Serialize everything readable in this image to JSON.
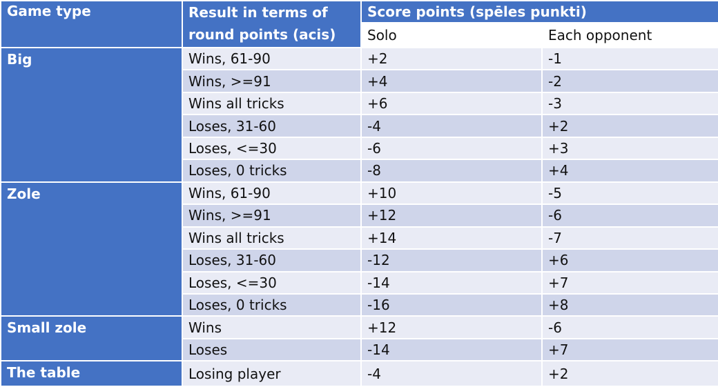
{
  "header": {
    "game_type": "Game type",
    "result": "Result in terms of round points (acis)",
    "score_points": "Score points (spēles punkti)",
    "solo": "Solo",
    "each_opponent": "Each opponent"
  },
  "groups": [
    {
      "game_type": "Big",
      "rows": [
        {
          "result": "Wins, 61-90",
          "solo": "+2",
          "opponent": "-1"
        },
        {
          "result": "Wins, >=91",
          "solo": "+4",
          "opponent": "-2"
        },
        {
          "result": "Wins all tricks",
          "solo": "+6",
          "opponent": "-3"
        },
        {
          "result": "Loses, 31-60",
          "solo": "-4",
          "opponent": "+2"
        },
        {
          "result": "Loses, <=30",
          "solo": "-6",
          "opponent": "+3"
        },
        {
          "result": "Loses, 0 tricks",
          "solo": "-8",
          "opponent": "+4"
        }
      ]
    },
    {
      "game_type": "Zole",
      "rows": [
        {
          "result": "Wins, 61-90",
          "solo": "+10",
          "opponent": "-5"
        },
        {
          "result": "Wins, >=91",
          "solo": "+12",
          "opponent": "-6"
        },
        {
          "result": "Wins all tricks",
          "solo": "+14",
          "opponent": "-7"
        },
        {
          "result": "Loses, 31-60",
          "solo": "-12",
          "opponent": "+6"
        },
        {
          "result": "Loses, <=30",
          "solo": "-14",
          "opponent": "+7"
        },
        {
          "result": "Loses, 0 tricks",
          "solo": "-16",
          "opponent": "+8"
        }
      ]
    },
    {
      "game_type": "Small zole",
      "rows": [
        {
          "result": "Wins",
          "solo": "+12",
          "opponent": "-6"
        },
        {
          "result": "Loses",
          "solo": "-14",
          "opponent": "+7"
        }
      ]
    },
    {
      "game_type": "The table",
      "rows": [
        {
          "result": "Losing player",
          "solo": "-4",
          "opponent": "+2"
        }
      ]
    }
  ],
  "colors": {
    "header_blue": "#4472c4",
    "row_light": "#e9ebf5",
    "row_dark": "#cfd5ea"
  }
}
